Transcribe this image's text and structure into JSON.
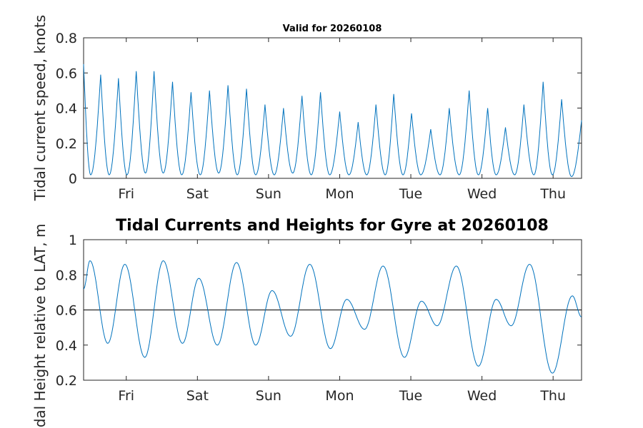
{
  "chart_data": [
    {
      "type": "line",
      "title": "Valid for 20260108",
      "ylabel": "Tidal current speed, knots",
      "xlabel": "",
      "xlim_days": [
        0,
        7
      ],
      "ylim": [
        0,
        0.8
      ],
      "yticks": [
        0,
        0.2,
        0.4,
        0.6,
        0.8
      ],
      "xticks": [
        {
          "day": 0.6,
          "label": "Fri"
        },
        {
          "day": 1.6,
          "label": "Sat"
        },
        {
          "day": 2.6,
          "label": "Sun"
        },
        {
          "day": 3.6,
          "label": "Mon"
        },
        {
          "day": 4.6,
          "label": "Tue"
        },
        {
          "day": 5.6,
          "label": "Wed"
        },
        {
          "day": 6.6,
          "label": "Thu"
        }
      ],
      "grid": false,
      "series": [
        {
          "color": "#0072bd",
          "peaks": [
            {
              "day": 0.0,
              "value": 0.65
            },
            {
              "day": 0.24,
              "value": 0.59
            },
            {
              "day": 0.49,
              "value": 0.57
            },
            {
              "day": 0.74,
              "value": 0.61
            },
            {
              "day": 0.99,
              "value": 0.61
            },
            {
              "day": 1.25,
              "value": 0.55
            },
            {
              "day": 1.51,
              "value": 0.49
            },
            {
              "day": 1.77,
              "value": 0.5
            },
            {
              "day": 2.03,
              "value": 0.53
            },
            {
              "day": 2.29,
              "value": 0.51
            },
            {
              "day": 2.55,
              "value": 0.42
            },
            {
              "day": 2.81,
              "value": 0.4
            },
            {
              "day": 3.07,
              "value": 0.47
            },
            {
              "day": 3.33,
              "value": 0.49
            },
            {
              "day": 3.6,
              "value": 0.38
            },
            {
              "day": 3.86,
              "value": 0.32
            },
            {
              "day": 4.11,
              "value": 0.42
            },
            {
              "day": 4.36,
              "value": 0.48
            },
            {
              "day": 4.61,
              "value": 0.37
            },
            {
              "day": 4.88,
              "value": 0.28
            },
            {
              "day": 5.14,
              "value": 0.4
            },
            {
              "day": 5.42,
              "value": 0.5
            },
            {
              "day": 5.68,
              "value": 0.4
            },
            {
              "day": 5.93,
              "value": 0.29
            },
            {
              "day": 6.19,
              "value": 0.42
            },
            {
              "day": 6.46,
              "value": 0.55
            },
            {
              "day": 6.72,
              "value": 0.45
            },
            {
              "day": 7.0,
              "value": 0.33
            }
          ],
          "troughs": [
            {
              "day": 0.1,
              "value": 0.02
            },
            {
              "day": 0.36,
              "value": 0.02
            },
            {
              "day": 0.61,
              "value": 0.02
            },
            {
              "day": 0.87,
              "value": 0.03
            },
            {
              "day": 1.12,
              "value": 0.03
            },
            {
              "day": 1.38,
              "value": 0.02
            },
            {
              "day": 1.64,
              "value": 0.02
            },
            {
              "day": 1.9,
              "value": 0.03
            },
            {
              "day": 2.16,
              "value": 0.02
            },
            {
              "day": 2.42,
              "value": 0.02
            },
            {
              "day": 2.68,
              "value": 0.02
            },
            {
              "day": 2.94,
              "value": 0.03
            },
            {
              "day": 3.2,
              "value": 0.02
            },
            {
              "day": 3.46,
              "value": 0.02
            },
            {
              "day": 3.73,
              "value": 0.02
            },
            {
              "day": 3.98,
              "value": 0.02
            },
            {
              "day": 4.24,
              "value": 0.02
            },
            {
              "day": 4.49,
              "value": 0.02
            },
            {
              "day": 4.74,
              "value": 0.02
            },
            {
              "day": 5.01,
              "value": 0.02
            },
            {
              "day": 5.28,
              "value": 0.02
            },
            {
              "day": 5.55,
              "value": 0.02
            },
            {
              "day": 5.8,
              "value": 0.02
            },
            {
              "day": 6.06,
              "value": 0.02
            },
            {
              "day": 6.33,
              "value": 0.02
            },
            {
              "day": 6.59,
              "value": 0.02
            },
            {
              "day": 6.86,
              "value": 0.01
            }
          ]
        }
      ]
    },
    {
      "type": "line",
      "title": "Tidal Currents and Heights for Gyre at 20260108",
      "ylabel": "Tidal Height relative to LAT, m",
      "xlabel": "",
      "xlim_days": [
        0,
        7
      ],
      "ylim": [
        0.2,
        1.0
      ],
      "yticks": [
        0.2,
        0.4,
        0.6,
        0.8,
        1.0
      ],
      "xticks": [
        {
          "day": 0.6,
          "label": "Fri"
        },
        {
          "day": 1.6,
          "label": "Sat"
        },
        {
          "day": 2.6,
          "label": "Sun"
        },
        {
          "day": 3.6,
          "label": "Mon"
        },
        {
          "day": 4.6,
          "label": "Tue"
        },
        {
          "day": 5.6,
          "label": "Wed"
        },
        {
          "day": 6.6,
          "label": "Thu"
        }
      ],
      "grid": false,
      "reference_line": {
        "value": 0.6,
        "color": "#000000"
      },
      "series": [
        {
          "color": "#0072bd",
          "extrema": [
            {
              "day": 0.0,
              "value": 0.72
            },
            {
              "day": 0.09,
              "value": 0.88
            },
            {
              "day": 0.34,
              "value": 0.41
            },
            {
              "day": 0.58,
              "value": 0.86
            },
            {
              "day": 0.86,
              "value": 0.33
            },
            {
              "day": 1.12,
              "value": 0.88
            },
            {
              "day": 1.39,
              "value": 0.41
            },
            {
              "day": 1.62,
              "value": 0.78
            },
            {
              "day": 1.88,
              "value": 0.4
            },
            {
              "day": 2.15,
              "value": 0.87
            },
            {
              "day": 2.42,
              "value": 0.4
            },
            {
              "day": 2.65,
              "value": 0.71
            },
            {
              "day": 2.91,
              "value": 0.45
            },
            {
              "day": 3.18,
              "value": 0.86
            },
            {
              "day": 3.47,
              "value": 0.38
            },
            {
              "day": 3.7,
              "value": 0.66
            },
            {
              "day": 3.95,
              "value": 0.49
            },
            {
              "day": 4.21,
              "value": 0.85
            },
            {
              "day": 4.51,
              "value": 0.33
            },
            {
              "day": 4.75,
              "value": 0.65
            },
            {
              "day": 4.97,
              "value": 0.51
            },
            {
              "day": 5.24,
              "value": 0.85
            },
            {
              "day": 5.55,
              "value": 0.28
            },
            {
              "day": 5.8,
              "value": 0.66
            },
            {
              "day": 6.01,
              "value": 0.51
            },
            {
              "day": 6.27,
              "value": 0.86
            },
            {
              "day": 6.59,
              "value": 0.24
            },
            {
              "day": 6.87,
              "value": 0.68
            },
            {
              "day": 7.0,
              "value": 0.56
            }
          ]
        }
      ]
    }
  ]
}
